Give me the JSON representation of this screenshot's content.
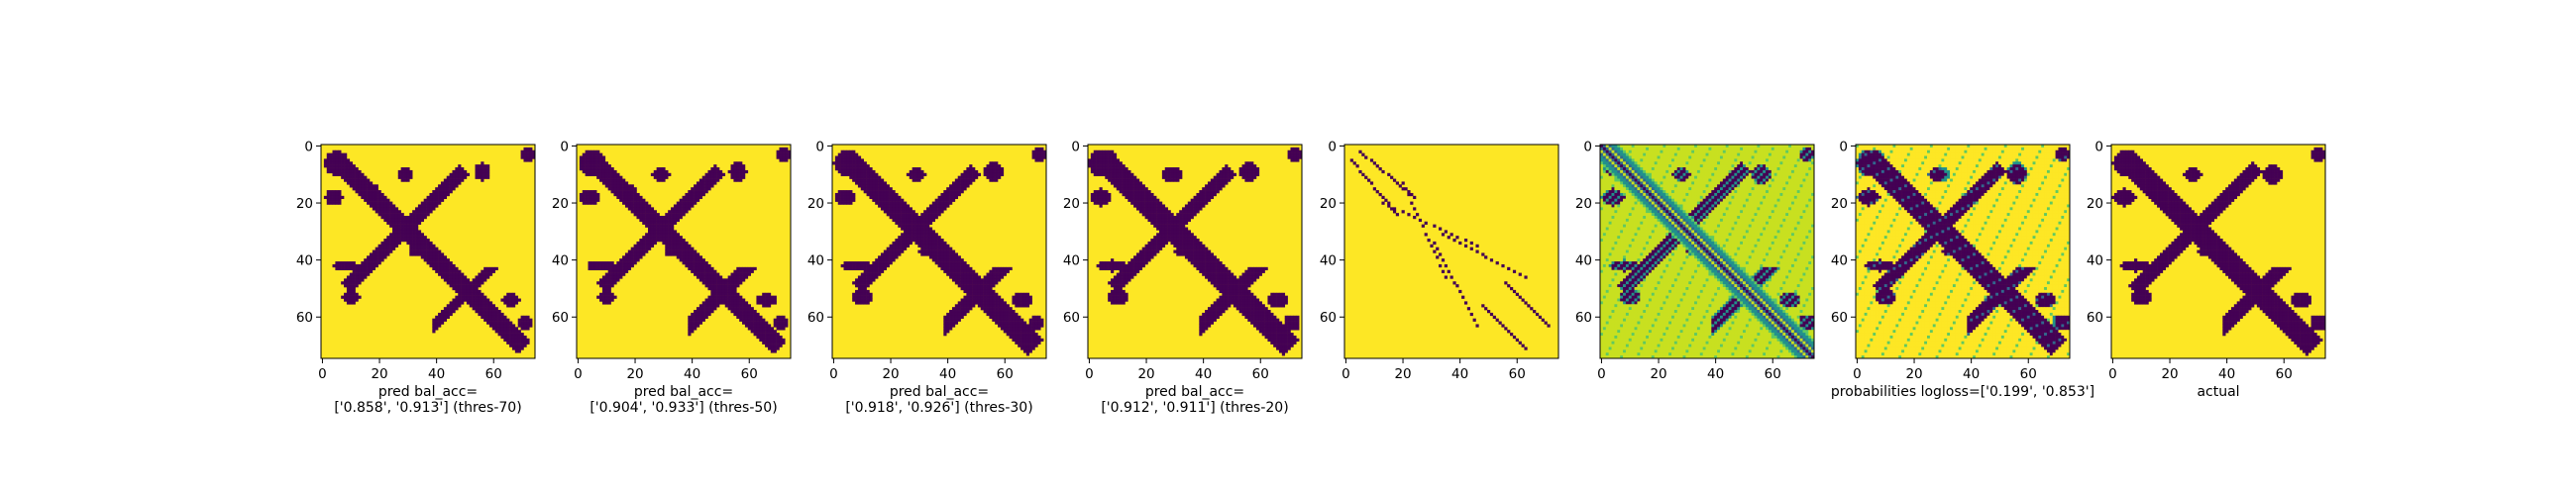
{
  "colors": {
    "dark": "#440154",
    "mid_blue": "#31688e",
    "teal": "#21918c",
    "green": "#5ec962",
    "light_green": "#c8e020",
    "yellow": "#fde725"
  },
  "chart_data": [
    {
      "type": "heatmap",
      "matrix_size": 75,
      "xticks": [
        "0",
        "20",
        "40",
        "60"
      ],
      "yticks": [
        "0",
        "20",
        "40",
        "60"
      ],
      "xlabel_lines": [
        "pred bal_acc=",
        "['0.858', '0.913'] (thres-70)"
      ],
      "threshold": 70
    },
    {
      "type": "heatmap",
      "matrix_size": 75,
      "xticks": [
        "0",
        "20",
        "40",
        "60"
      ],
      "yticks": [
        "0",
        "20",
        "40",
        "60"
      ],
      "xlabel_lines": [
        "pred bal_acc=",
        "['0.904', '0.933'] (thres-50)"
      ],
      "threshold": 50
    },
    {
      "type": "heatmap",
      "matrix_size": 75,
      "xticks": [
        "0",
        "20",
        "40",
        "60"
      ],
      "yticks": [
        "0",
        "20",
        "40",
        "60"
      ],
      "xlabel_lines": [
        "pred bal_acc=",
        "['0.918', '0.926'] (thres-30)"
      ],
      "threshold": 30
    },
    {
      "type": "heatmap",
      "matrix_size": 75,
      "xticks": [
        "0",
        "20",
        "40",
        "60"
      ],
      "yticks": [
        "0",
        "20",
        "40",
        "60"
      ],
      "xlabel_lines": [
        "pred bal_acc=",
        "['0.912', '0.911'] (thres-20)"
      ],
      "threshold": 20
    },
    {
      "type": "heatmap",
      "matrix_size": 75,
      "xticks": [
        "0",
        "20",
        "40",
        "60"
      ],
      "yticks": [
        "0",
        "20",
        "40",
        "60"
      ],
      "xlabel_lines": []
    },
    {
      "type": "heatmap",
      "matrix_size": 75,
      "xticks": [
        "0",
        "20",
        "40",
        "60"
      ],
      "yticks": [
        "0",
        "20",
        "40",
        "60"
      ],
      "xlabel_lines": []
    },
    {
      "type": "heatmap",
      "matrix_size": 75,
      "xticks": [
        "0",
        "20",
        "40",
        "60"
      ],
      "yticks": [
        "0",
        "20",
        "40",
        "60"
      ],
      "xlabel_lines": [
        "probabilities logloss=['0.199', '0.853']"
      ]
    },
    {
      "type": "heatmap",
      "matrix_size": 75,
      "xticks": [
        "0",
        "20",
        "40",
        "60"
      ],
      "yticks": [
        "0",
        "20",
        "40",
        "60"
      ],
      "xlabel_lines": [
        "actual"
      ]
    }
  ]
}
